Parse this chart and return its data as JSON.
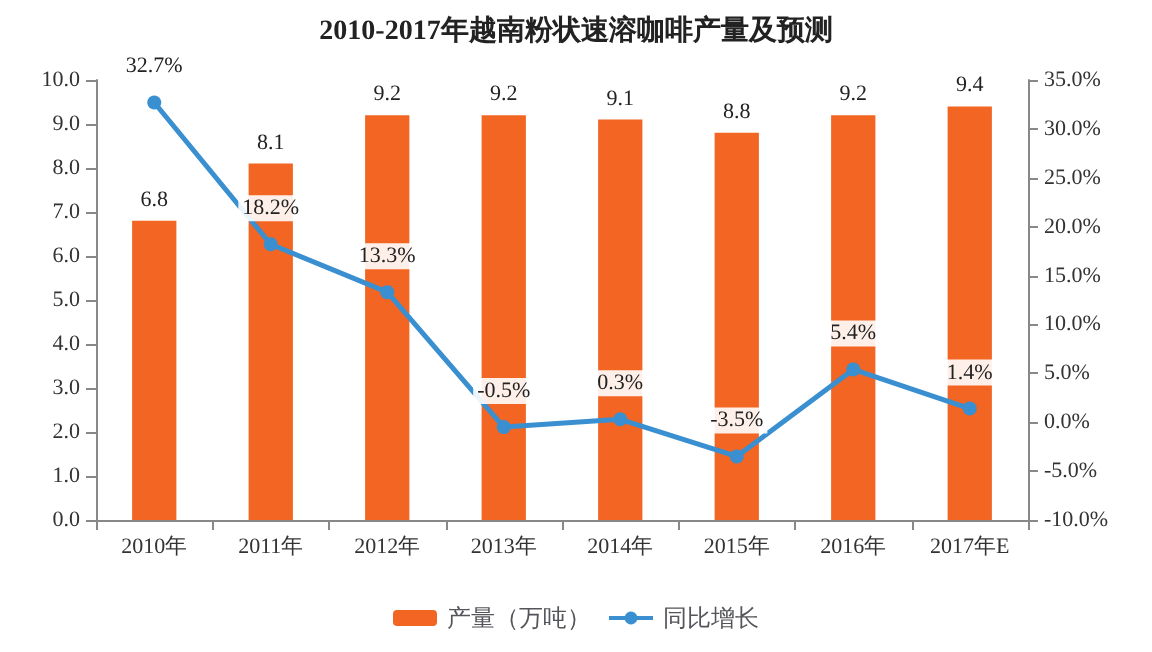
{
  "chart_data": {
    "type": "bar",
    "title": "2010-2017年越南粉状速溶咖啡产量及预测",
    "categories": [
      "2010年",
      "2011年",
      "2012年",
      "2013年",
      "2014年",
      "2015年",
      "2016年",
      "2017年E"
    ],
    "series": [
      {
        "name": "产量（万吨）",
        "color": "#f26522",
        "values": [
          6.8,
          8.1,
          9.2,
          9.2,
          9.1,
          8.8,
          9.2,
          9.4
        ]
      },
      {
        "name": "同比增长",
        "type": "line",
        "axis": "y2",
        "color": "#3a8fd0",
        "marker": "circle",
        "values": [
          32.7,
          18.2,
          13.3,
          -0.5,
          0.3,
          -3.5,
          5.4,
          1.4
        ],
        "value_labels": [
          "32.7%",
          "18.2%",
          "13.3%",
          "-0.5%",
          "0.3%",
          "-3.5%",
          "5.4%",
          "1.4%"
        ]
      }
    ],
    "data_labels": true,
    "legend": "bottom",
    "grid": false,
    "ylim": [
      0,
      10
    ],
    "yticks": [
      {
        "value": 0,
        "label": "0.0"
      },
      {
        "value": 1,
        "label": "1.0"
      },
      {
        "value": 2,
        "label": "2.0"
      },
      {
        "value": 3,
        "label": "3.0"
      },
      {
        "value": 4,
        "label": "4.0"
      },
      {
        "value": 5,
        "label": "5.0"
      },
      {
        "value": 6,
        "label": "6.0"
      },
      {
        "value": 7,
        "label": "7.0"
      },
      {
        "value": 8,
        "label": "8.0"
      },
      {
        "value": 9,
        "label": "9.0"
      },
      {
        "value": 10,
        "label": "10.0"
      }
    ],
    "y2lim": [
      -10,
      35
    ],
    "y2ticks": [
      {
        "value": -10,
        "label": "-10.0%"
      },
      {
        "value": -5,
        "label": "-5.0%"
      },
      {
        "value": 0,
        "label": "0.0%"
      },
      {
        "value": 5,
        "label": "5.0%"
      },
      {
        "value": 10,
        "label": "10.0%"
      },
      {
        "value": 15,
        "label": "15.0%"
      },
      {
        "value": 20,
        "label": "20.0%"
      },
      {
        "value": 25,
        "label": "25.0%"
      },
      {
        "value": 30,
        "label": "30.0%"
      },
      {
        "value": 35,
        "label": "35.0%"
      }
    ]
  }
}
